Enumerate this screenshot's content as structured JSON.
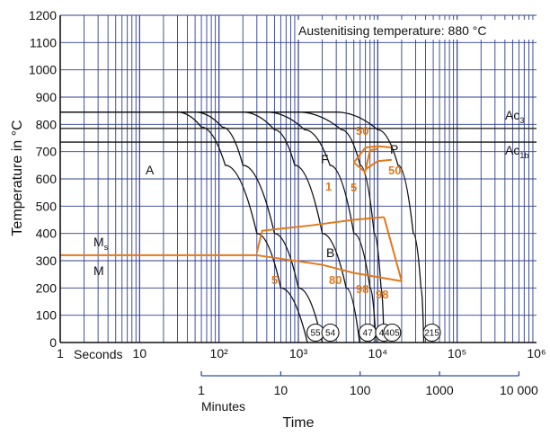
{
  "chart_data": {
    "type": "line",
    "title": "",
    "annotation": "Austenitising temperature: 880 °C",
    "ylabel": "Temperature in °C",
    "xlabel": "Time",
    "xscale": "log",
    "xlim_seconds": [
      1,
      1000000
    ],
    "ylim": [
      0,
      1200
    ],
    "y_ticks": [
      "0",
      "100",
      "200",
      "300",
      "400",
      "500",
      "600",
      "700",
      "800",
      "900",
      "1000",
      "1100",
      "1200"
    ],
    "x_ticks_seconds": [
      "1",
      "10",
      "10²",
      "10³",
      "10⁴",
      "10⁵",
      "10⁶"
    ],
    "x_unit_seconds": "Seconds",
    "x_ticks_minutes": [
      "1",
      "10",
      "100",
      "1000",
      "10 000"
    ],
    "x_unit_minutes": "Minutes",
    "horizontal_lines": [
      {
        "name": "Ac3",
        "y": 785,
        "label_main": "Ac",
        "label_sub": "3"
      },
      {
        "name": "Ac1b",
        "y": 735,
        "label_main": "Ac",
        "label_sub": "1b"
      }
    ],
    "ms_line": {
      "y": 320,
      "label_main": "M",
      "label_sub": "s"
    },
    "phase_labels": [
      "A",
      "F",
      "P",
      "B",
      "M"
    ],
    "cooling_curves": [
      {
        "hardness": "55",
        "points": [
          [
            1,
            845
          ],
          [
            30,
            845
          ],
          [
            60,
            790
          ],
          [
            120,
            650
          ],
          [
            300,
            400
          ],
          [
            600,
            200
          ],
          [
            1300,
            0
          ]
        ]
      },
      {
        "hardness": "54",
        "points": [
          [
            1,
            845
          ],
          [
            50,
            845
          ],
          [
            110,
            790
          ],
          [
            200,
            650
          ],
          [
            500,
            400
          ],
          [
            1000,
            200
          ],
          [
            2000,
            0
          ]
        ]
      },
      {
        "hardness": "47",
        "points": [
          [
            1,
            845
          ],
          [
            200,
            845
          ],
          [
            500,
            780
          ],
          [
            900,
            650
          ],
          [
            2000,
            400
          ],
          [
            4000,
            200
          ],
          [
            5900,
            0
          ]
        ]
      },
      {
        "hardness": "44",
        "points": [
          [
            1,
            845
          ],
          [
            400,
            845
          ],
          [
            1200,
            780
          ],
          [
            2500,
            650
          ],
          [
            5000,
            400
          ],
          [
            8000,
            200
          ],
          [
            9500,
            0
          ]
        ]
      },
      {
        "hardness": "405",
        "points": [
          [
            1,
            845
          ],
          [
            1000,
            845
          ],
          [
            3500,
            780
          ],
          [
            6000,
            650
          ],
          [
            9000,
            400
          ],
          [
            11000,
            200
          ],
          [
            12000,
            0
          ]
        ]
      },
      {
        "hardness": "215",
        "points": [
          [
            1,
            845
          ],
          [
            3000,
            845
          ],
          [
            10000,
            780
          ],
          [
            18000,
            650
          ],
          [
            28000,
            400
          ],
          [
            35000,
            200
          ],
          [
            38000,
            0
          ]
        ]
      }
    ],
    "transformation_regions": [
      {
        "name": "ferrite-start",
        "points": [
          [
            5000,
            660
          ],
          [
            7000,
            715
          ],
          [
            10000,
            720
          ],
          [
            15000,
            715
          ]
        ]
      },
      {
        "name": "ferrite-pearlite-1pct",
        "points": [
          [
            5000,
            660
          ],
          [
            6300,
            635
          ],
          [
            7000,
            625
          ]
        ]
      },
      {
        "name": "pearlite-start",
        "points": [
          [
            7000,
            635
          ],
          [
            10000,
            665
          ],
          [
            15000,
            670
          ]
        ]
      },
      {
        "name": "pearlite-small",
        "points": [
          [
            6800,
            615
          ],
          [
            8000,
            705
          ],
          [
            10000,
            710
          ]
        ]
      },
      {
        "name": "bainite-start",
        "points": [
          [
            300,
            330
          ],
          [
            350,
            410
          ],
          [
            1500,
            430
          ],
          [
            5000,
            450
          ],
          [
            12000,
            460
          ]
        ]
      },
      {
        "name": "bainite-right",
        "points": [
          [
            12000,
            460
          ],
          [
            20000,
            225
          ]
        ]
      },
      {
        "name": "bainite-finish",
        "points": [
          [
            300,
            320
          ],
          [
            2000,
            285
          ],
          [
            5000,
            255
          ],
          [
            20000,
            225
          ]
        ]
      }
    ],
    "transformation_percent_labels": [
      "50",
      "50",
      "1",
      "5",
      "5",
      "80",
      "98",
      "98"
    ]
  }
}
